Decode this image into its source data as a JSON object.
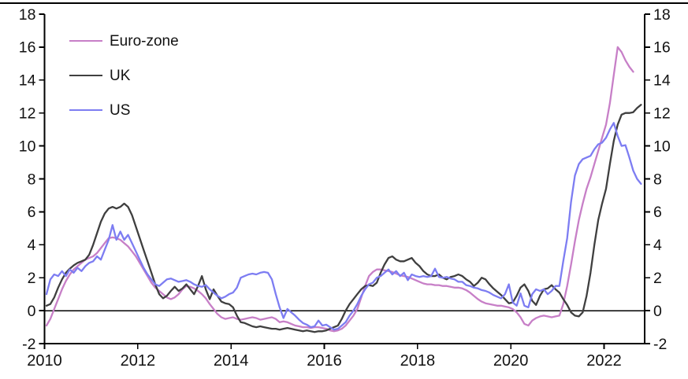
{
  "chart_data": {
    "type": "line",
    "title": "",
    "xlabel": "",
    "ylabel": "",
    "background": "#ffffff",
    "axis_color": "#000000",
    "tick_label_color": "#111111",
    "zero_line": true,
    "grid": false,
    "legend_position": "top-left-inside",
    "ylim": [
      -2,
      18
    ],
    "xlim": [
      2010,
      2022.87
    ],
    "y_ticks": [
      -2,
      0,
      2,
      4,
      6,
      8,
      10,
      12,
      14,
      16,
      18
    ],
    "x_ticks": [
      2010,
      2012,
      2014,
      2016,
      2018,
      2020,
      2022
    ],
    "x_start": 2010.042,
    "x_step": 0.08333,
    "series": [
      {
        "name": "Euro-zone",
        "color": "#c77fc7",
        "values": [
          -0.9,
          -0.5,
          0.1,
          0.7,
          1.3,
          1.8,
          2.2,
          2.5,
          2.7,
          2.9,
          3.1,
          3.2,
          3.3,
          3.5,
          3.8,
          4.1,
          4.4,
          4.45,
          4.4,
          4.3,
          4.1,
          3.9,
          3.6,
          3.3,
          2.9,
          2.5,
          2.1,
          1.7,
          1.4,
          1.2,
          1.0,
          0.8,
          0.7,
          0.8,
          1.0,
          1.3,
          1.5,
          1.45,
          1.35,
          1.2,
          1.0,
          0.75,
          0.4,
          0.1,
          -0.2,
          -0.4,
          -0.5,
          -0.45,
          -0.4,
          -0.5,
          -0.55,
          -0.5,
          -0.45,
          -0.4,
          -0.45,
          -0.55,
          -0.5,
          -0.45,
          -0.4,
          -0.5,
          -0.7,
          -0.65,
          -0.7,
          -0.8,
          -0.9,
          -0.95,
          -1.0,
          -1.0,
          -1.05,
          -1.0,
          -1.0,
          -1.05,
          -1.1,
          -1.2,
          -1.25,
          -1.2,
          -1.1,
          -0.9,
          -0.6,
          -0.3,
          0.1,
          0.8,
          1.5,
          2.1,
          2.35,
          2.5,
          2.5,
          2.45,
          2.4,
          2.35,
          2.25,
          2.15,
          2.1,
          2.05,
          1.95,
          1.85,
          1.75,
          1.65,
          1.6,
          1.6,
          1.55,
          1.55,
          1.5,
          1.5,
          1.45,
          1.4,
          1.4,
          1.35,
          1.25,
          1.1,
          0.9,
          0.7,
          0.55,
          0.45,
          0.4,
          0.35,
          0.3,
          0.3,
          0.25,
          0.2,
          0.1,
          -0.1,
          -0.4,
          -0.8,
          -0.9,
          -0.6,
          -0.45,
          -0.35,
          -0.3,
          -0.35,
          -0.4,
          -0.35,
          -0.3,
          0.4,
          1.5,
          2.8,
          4.2,
          5.5,
          6.5,
          7.4,
          8.1,
          8.9,
          9.7,
          10.5,
          11.3,
          12.6,
          14.3,
          16.0,
          15.7,
          15.2,
          14.8,
          14.5
        ]
      },
      {
        "name": "UK",
        "color": "#3f3f3f",
        "values": [
          0.3,
          0.4,
          0.8,
          1.4,
          1.9,
          2.3,
          2.55,
          2.75,
          2.9,
          3.0,
          3.1,
          3.4,
          4.0,
          4.7,
          5.4,
          5.9,
          6.2,
          6.3,
          6.2,
          6.3,
          6.5,
          6.3,
          5.8,
          5.1,
          4.4,
          3.7,
          3.0,
          2.3,
          1.6,
          1.0,
          0.75,
          0.9,
          1.2,
          1.45,
          1.2,
          1.35,
          1.6,
          1.3,
          1.0,
          1.5,
          2.1,
          1.3,
          0.7,
          1.3,
          0.9,
          0.55,
          0.45,
          0.4,
          0.2,
          -0.3,
          -0.7,
          -0.75,
          -0.85,
          -0.95,
          -1.0,
          -0.95,
          -1.0,
          -1.05,
          -1.1,
          -1.1,
          -1.15,
          -1.1,
          -1.05,
          -1.1,
          -1.15,
          -1.2,
          -1.25,
          -1.2,
          -1.25,
          -1.3,
          -1.25,
          -1.25,
          -1.2,
          -1.1,
          -1.0,
          -0.9,
          -0.5,
          0.0,
          0.4,
          0.7,
          1.0,
          1.3,
          1.5,
          1.55,
          1.5,
          1.7,
          2.3,
          2.8,
          3.2,
          3.3,
          3.1,
          3.0,
          3.0,
          3.1,
          3.2,
          2.9,
          2.7,
          2.4,
          2.2,
          2.1,
          2.1,
          2.2,
          2.0,
          1.9,
          2.05,
          2.1,
          2.2,
          2.1,
          1.9,
          1.75,
          1.5,
          1.7,
          2.0,
          1.9,
          1.6,
          1.35,
          1.15,
          0.95,
          0.7,
          0.45,
          0.5,
          0.9,
          1.4,
          1.6,
          1.2,
          0.6,
          0.35,
          0.9,
          1.3,
          1.35,
          1.55,
          1.3,
          1.1,
          0.7,
          0.35,
          -0.1,
          -0.3,
          -0.35,
          -0.1,
          0.9,
          2.3,
          4.0,
          5.5,
          6.5,
          7.4,
          8.9,
          10.3,
          11.3,
          11.9,
          12.0,
          12.0,
          12.05,
          12.3,
          12.5
        ]
      },
      {
        "name": "US",
        "color": "#7d7df2",
        "values": [
          1.0,
          1.9,
          2.2,
          2.1,
          2.4,
          2.1,
          2.5,
          2.3,
          2.6,
          2.4,
          2.7,
          2.9,
          3.0,
          3.3,
          3.1,
          3.7,
          4.3,
          5.2,
          4.3,
          4.8,
          4.3,
          4.6,
          4.1,
          3.6,
          3.1,
          2.6,
          2.2,
          1.9,
          1.6,
          1.5,
          1.7,
          1.9,
          1.95,
          1.85,
          1.75,
          1.8,
          1.85,
          1.75,
          1.6,
          1.5,
          1.45,
          1.55,
          1.3,
          1.1,
          0.9,
          0.75,
          0.85,
          1.0,
          1.1,
          1.4,
          2.0,
          2.1,
          2.2,
          2.25,
          2.2,
          2.3,
          2.35,
          2.3,
          1.9,
          1.0,
          0.2,
          -0.45,
          0.1,
          -0.1,
          -0.3,
          -0.55,
          -0.75,
          -0.85,
          -1.0,
          -0.95,
          -0.6,
          -0.9,
          -0.85,
          -1.0,
          -1.15,
          -1.1,
          -0.9,
          -0.7,
          -0.3,
          0.0,
          0.4,
          0.9,
          1.3,
          1.6,
          1.7,
          2.0,
          2.1,
          2.3,
          2.5,
          2.2,
          2.4,
          2.1,
          2.3,
          1.85,
          2.2,
          2.1,
          2.05,
          2.1,
          2.05,
          2.1,
          2.55,
          2.05,
          2.0,
          2.05,
          1.95,
          1.9,
          1.75,
          1.75,
          1.55,
          1.5,
          1.4,
          1.35,
          1.25,
          1.2,
          1.1,
          0.95,
          0.85,
          0.75,
          1.0,
          1.6,
          0.5,
          0.3,
          1.05,
          0.3,
          0.2,
          1.0,
          1.3,
          1.2,
          1.3,
          1.0,
          1.2,
          1.5,
          1.5,
          3.0,
          4.4,
          6.6,
          8.2,
          8.9,
          9.2,
          9.3,
          9.4,
          9.8,
          10.1,
          10.2,
          10.5,
          11.0,
          11.4,
          10.6,
          10.0,
          10.05,
          9.3,
          8.5,
          8.0,
          7.7
        ]
      }
    ]
  }
}
